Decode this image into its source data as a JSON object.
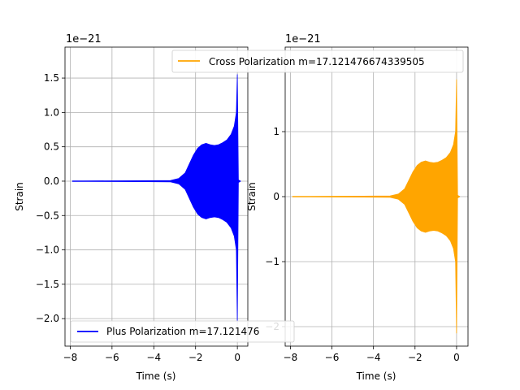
{
  "chart_data": [
    {
      "type": "line",
      "xlabel": "Time (s)",
      "ylabel": "Strain",
      "offset_text": "1e−21",
      "xlim": [
        -8.25,
        0.5
      ],
      "ylim": [
        -2.4,
        1.95
      ],
      "xticks": [
        -8,
        -6,
        -4,
        -2,
        0
      ],
      "xtick_labels": [
        "−8",
        "−6",
        "−4",
        "−2",
        "0"
      ],
      "yticks": [
        -2.0,
        -1.5,
        -1.0,
        -0.5,
        0.0,
        0.5,
        1.0,
        1.5
      ],
      "ytick_labels": [
        "−2.0",
        "−1.5",
        "−1.0",
        "−0.5",
        "0.0",
        "0.5",
        "1.0",
        "1.5"
      ],
      "grid": true,
      "legend_position": "lower-left",
      "series": [
        {
          "name": "Plus Polarization m=17.121476674339505",
          "legend_label": "Plus Polarization m=17.121476",
          "color": "#0000ff",
          "x": [
            -7.9,
            -3.2,
            -2.8,
            -2.5,
            -2.3,
            -2.1,
            -1.9,
            -1.7,
            -1.5,
            -1.3,
            -1.1,
            -0.9,
            -0.7,
            -0.5,
            -0.3,
            -0.15,
            -0.05,
            0.0,
            0.05,
            0.15
          ],
          "amplitude": [
            0.0,
            0.01,
            0.04,
            0.12,
            0.25,
            0.38,
            0.48,
            0.53,
            0.55,
            0.53,
            0.52,
            0.53,
            0.56,
            0.6,
            0.68,
            0.8,
            1.0,
            1.55,
            0.02,
            0.0
          ],
          "amplitude_lower": [
            0.0,
            0.01,
            0.04,
            0.12,
            0.25,
            0.38,
            0.48,
            0.53,
            0.55,
            0.53,
            0.52,
            0.53,
            0.56,
            0.6,
            0.68,
            0.8,
            1.0,
            2.05,
            0.02,
            0.0
          ]
        }
      ]
    },
    {
      "type": "line",
      "xlabel": "Time (s)",
      "ylabel": "Strain",
      "offset_text": "1e−21",
      "xlim": [
        -8.25,
        0.55
      ],
      "ylim": [
        -2.3,
        2.3
      ],
      "xticks": [
        -8,
        -6,
        -4,
        -2,
        0
      ],
      "xtick_labels": [
        "−8",
        "−6",
        "−4",
        "−2",
        "0"
      ],
      "yticks": [
        -2,
        -1,
        0,
        1
      ],
      "ytick_labels": [
        "−2",
        "−1",
        "0",
        "1"
      ],
      "grid": true,
      "legend_position": "top",
      "series": [
        {
          "name": "Cross Polarization m=17.121476674339505",
          "color": "#ffa500",
          "x": [
            -7.9,
            -3.2,
            -2.8,
            -2.5,
            -2.3,
            -2.1,
            -1.9,
            -1.7,
            -1.5,
            -1.3,
            -1.1,
            -0.9,
            -0.7,
            -0.5,
            -0.3,
            -0.15,
            -0.05,
            0.0,
            0.05,
            0.15
          ],
          "amplitude": [
            0.0,
            0.01,
            0.04,
            0.12,
            0.25,
            0.38,
            0.48,
            0.53,
            0.55,
            0.53,
            0.52,
            0.53,
            0.56,
            0.6,
            0.68,
            0.8,
            1.0,
            1.8,
            0.02,
            0.0
          ],
          "amplitude_lower": [
            0.0,
            0.01,
            0.04,
            0.12,
            0.25,
            0.38,
            0.48,
            0.53,
            0.55,
            0.53,
            0.52,
            0.53,
            0.56,
            0.6,
            0.68,
            0.8,
            1.0,
            2.1,
            0.02,
            0.0
          ]
        }
      ]
    }
  ]
}
